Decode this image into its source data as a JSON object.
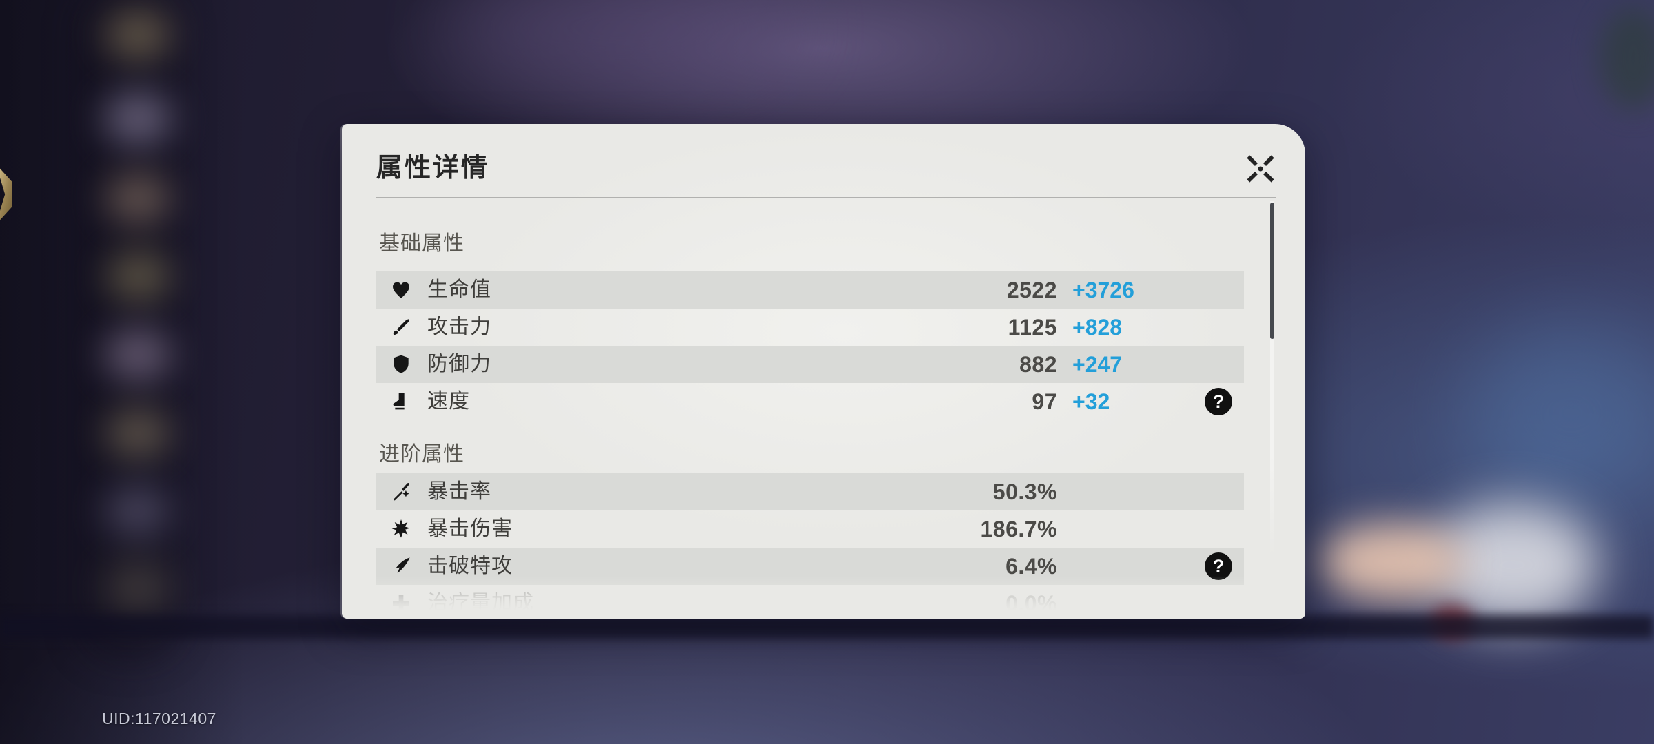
{
  "hud": {
    "uid": "UID:117021407"
  },
  "colors": {
    "add_value_blue": "#239fd9",
    "stripe_gray": "#d9dad7",
    "panel_bg": "#e9e9e6",
    "help_badge_bg": "#101010"
  },
  "dialog": {
    "title": "属性详情",
    "help_glyph": "?",
    "sections": [
      {
        "header": "基础属性",
        "rows": [
          {
            "icon": "hp-icon",
            "label": "生命值",
            "base": "2522",
            "add": "+3726"
          },
          {
            "icon": "atk-icon",
            "label": "攻击力",
            "base": "1125",
            "add": "+828"
          },
          {
            "icon": "def-icon",
            "label": "防御力",
            "base": "882",
            "add": "+247"
          },
          {
            "icon": "speed-icon",
            "label": "速度",
            "base": "97",
            "add": "+32",
            "help": true
          }
        ]
      },
      {
        "header": "进阶属性",
        "rows": [
          {
            "icon": "crit-rate-icon",
            "label": "暴击率",
            "value": "50.3%"
          },
          {
            "icon": "crit-dmg-icon",
            "label": "暴击伤害",
            "value": "186.7%"
          },
          {
            "icon": "break-effect-icon",
            "label": "击破特攻",
            "value": "6.4%",
            "help": true
          },
          {
            "icon": "healing-boost-icon",
            "label": "治疗量加成",
            "value": "0.0%",
            "faded": true
          }
        ]
      }
    ]
  }
}
